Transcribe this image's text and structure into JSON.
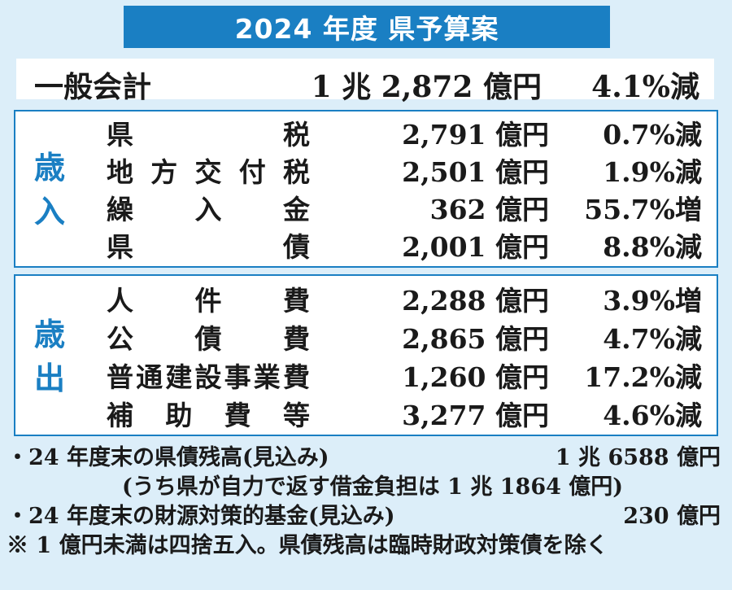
{
  "title": "2024 年度 県予算案",
  "general": {
    "label": "一般会計",
    "amount": "1 兆 2,872 億円",
    "rate": "4.1%減"
  },
  "revenue": {
    "label_chars": [
      "歳",
      "入"
    ],
    "rows": [
      {
        "chars": [
          "県",
          "税"
        ],
        "amount": "2,791 億円",
        "rate": "0.7%減"
      },
      {
        "chars": [
          "地",
          "方",
          "交",
          "付",
          "税"
        ],
        "amount": "2,501 億円",
        "rate": "1.9%減"
      },
      {
        "chars": [
          "繰",
          "入",
          "金"
        ],
        "amount": "362 億円",
        "rate": "55.7%増"
      },
      {
        "chars": [
          "県",
          "債"
        ],
        "amount": "2,001 億円",
        "rate": "8.8%減"
      }
    ]
  },
  "expenditure": {
    "label_chars": [
      "歳",
      "出"
    ],
    "rows": [
      {
        "chars": [
          "人",
          "件",
          "費"
        ],
        "amount": "2,288 億円",
        "rate": "3.9%増"
      },
      {
        "chars": [
          "公",
          "債",
          "費"
        ],
        "amount": "2,865 億円",
        "rate": "4.7%減"
      },
      {
        "chars": [
          "普",
          "通",
          "建",
          "設",
          "事",
          "業",
          "費"
        ],
        "amount": "1,260 億円",
        "rate": "17.2%減"
      },
      {
        "chars": [
          "補",
          "助",
          "費",
          "等"
        ],
        "amount": "3,277 億円",
        "rate": "4.6%減"
      }
    ]
  },
  "notes": [
    {
      "left": "・24 年度末の県債残高(見込み)",
      "right": "1 兆 6588 億円"
    },
    {
      "left": "(うち県が自力で返す借金負担は 1 兆 1864 億円)",
      "right": ""
    },
    {
      "left": "・24 年度末の財源対策的基金(見込み)",
      "right": "230 億円"
    },
    {
      "left": "※ 1 億円未満は四捨五入。県債残高は臨時財政対策債を除く",
      "right": ""
    }
  ]
}
